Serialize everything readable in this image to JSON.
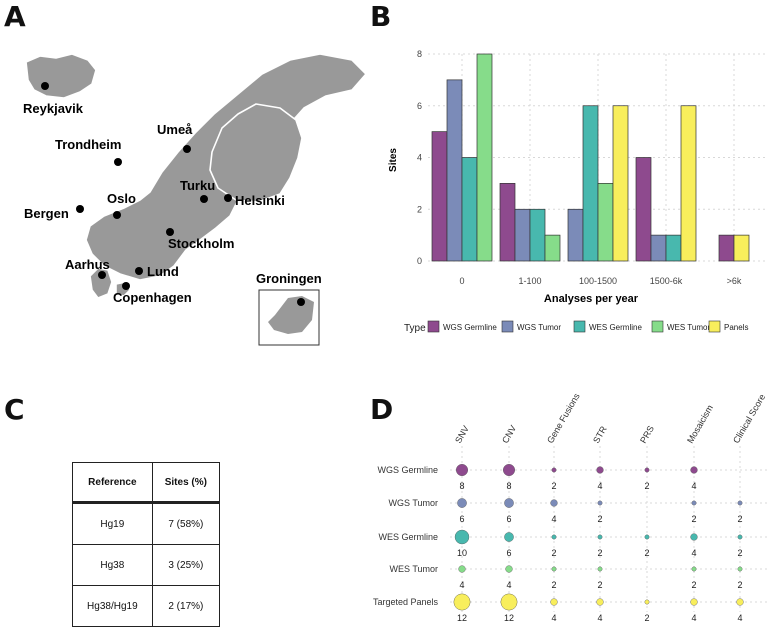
{
  "panel_labels": {
    "a": "A",
    "b": "B",
    "c": "C",
    "d": "D"
  },
  "map": {
    "cities": [
      "Reykjavik",
      "Trondheim",
      "Umeå",
      "Oslo",
      "Bergen",
      "Turku",
      "Helsinki",
      "Stockholm",
      "Aarhus",
      "Lund",
      "Copenhagen"
    ],
    "inset_label": "Groningen",
    "colors": {
      "land": "#999999",
      "border": "#ffffff",
      "dot": "#000000"
    }
  },
  "chart_data": [
    {
      "type": "bar",
      "id": "B",
      "xlabel": "Analyses per year",
      "ylabel": "Sites",
      "ylim": [
        0,
        8
      ],
      "yticks": [
        "0",
        "2",
        "4",
        "6",
        "8"
      ],
      "categories": [
        "0",
        "1-100",
        "100-1500",
        "1500-6k",
        ">6k"
      ],
      "legend_title": "Type",
      "legend_position": "bottom",
      "series": [
        {
          "name": "WGS Germline",
          "color": "#8e4a8e",
          "values": [
            5,
            3,
            0,
            4,
            1
          ]
        },
        {
          "name": "WGS Tumor",
          "color": "#7b8bb8",
          "values": [
            7,
            2,
            2,
            1,
            0
          ]
        },
        {
          "name": "WES Germline",
          "color": "#48b8ae",
          "values": [
            4,
            2,
            6,
            1,
            0
          ]
        },
        {
          "name": "WES Tumor",
          "color": "#86dc8a",
          "values": [
            8,
            1,
            3,
            0,
            0
          ]
        },
        {
          "name": "Panels",
          "color": "#f8ee5c",
          "values": [
            0,
            0,
            6,
            6,
            1
          ]
        }
      ]
    },
    {
      "type": "table",
      "id": "C",
      "columns": [
        "Reference",
        "Sites (%)"
      ],
      "rows": [
        [
          "Hg19",
          "7 (58%)"
        ],
        [
          "Hg38",
          "3 (25%)"
        ],
        [
          "Hg38/Hg19",
          "2 (17%)"
        ]
      ]
    },
    {
      "type": "scatter",
      "id": "D",
      "columns": [
        "SNV",
        "CNV",
        "Gene Fusions",
        "STR",
        "PRS",
        "Mosaicism",
        "Clinical Score"
      ],
      "rows": [
        {
          "name": "WGS Germline",
          "color": "#8e4a8e",
          "values": [
            8,
            8,
            2,
            4,
            2,
            4,
            null
          ]
        },
        {
          "name": "WGS Tumor",
          "color": "#7b8bb8",
          "values": [
            6,
            6,
            4,
            2,
            null,
            2,
            2
          ]
        },
        {
          "name": "WES Germline",
          "color": "#48b8ae",
          "values": [
            10,
            6,
            2,
            2,
            2,
            4,
            2
          ]
        },
        {
          "name": "WES Tumor",
          "color": "#86dc8a",
          "values": [
            4,
            4,
            2,
            2,
            null,
            2,
            2
          ]
        },
        {
          "name": "Targeted Panels",
          "color": "#f8ee5c",
          "values": [
            12,
            12,
            4,
            4,
            2,
            4,
            4
          ]
        }
      ]
    }
  ]
}
